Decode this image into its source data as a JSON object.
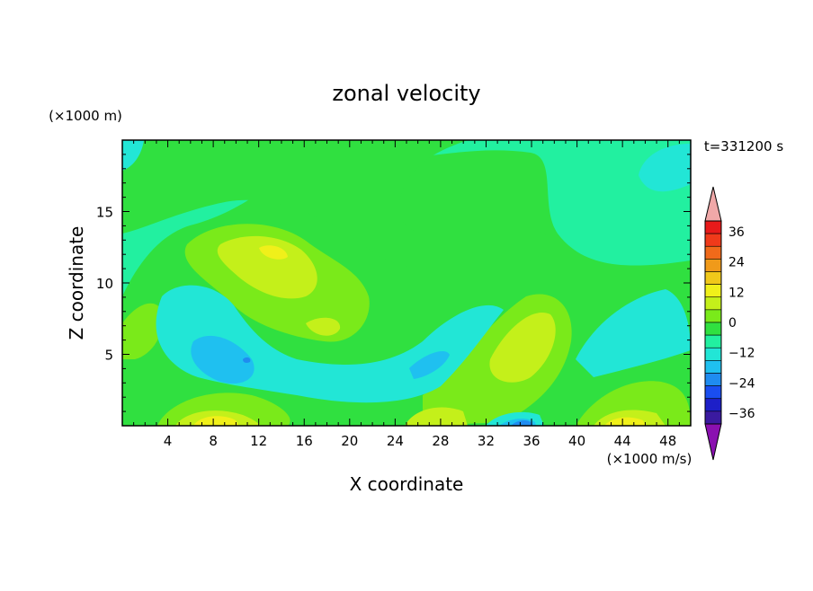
{
  "chart_data": {
    "type": "heatmap",
    "title": "zonal velocity",
    "xlabel": "X coordinate",
    "ylabel": "Z coordinate",
    "x_unit": "(×1000 m/s)",
    "y_unit": "(×1000 m)",
    "time_label": "t=331200 s",
    "xlim": [
      0,
      50
    ],
    "ylim": [
      0,
      20
    ],
    "x_ticks": [
      4,
      8,
      12,
      16,
      20,
      24,
      28,
      32,
      36,
      40,
      44,
      48
    ],
    "y_ticks": [
      5,
      10,
      15
    ],
    "colorbar": {
      "levels": [
        -36,
        -24,
        -12,
        0,
        12,
        24,
        36
      ],
      "labels": [
        "36",
        "24",
        "12",
        "0",
        "−12",
        "−24",
        "−36"
      ],
      "colors": [
        "#7a1fa2",
        "#3a1aa0",
        "#1d1fc8",
        "#1a4ef0",
        "#1f8cf0",
        "#1fc0f0",
        "#22e6d6",
        "#22f0a0",
        "#30e040",
        "#7aea1a",
        "#c4f01a",
        "#f0f01a",
        "#f0c81a",
        "#f09a1a",
        "#f06a1a",
        "#f03a1a",
        "#e81a1a",
        "#f0a0a0"
      ],
      "under_color": "#8a10b0",
      "over_color": "#f0a8a8"
    },
    "field": {
      "background": "#22f0a0",
      "regions": [
        {
          "level": 0,
          "color": "#30e040"
        },
        {
          "level": 6,
          "color": "#7aea1a"
        },
        {
          "level": 12,
          "color": "#c4f01a"
        },
        {
          "level": 18,
          "color": "#f0f01a"
        },
        {
          "level": -6,
          "color": "#22e6d6"
        },
        {
          "level": -12,
          "color": "#1fc0f0"
        },
        {
          "level": -18,
          "color": "#1f8cf0"
        }
      ]
    }
  }
}
